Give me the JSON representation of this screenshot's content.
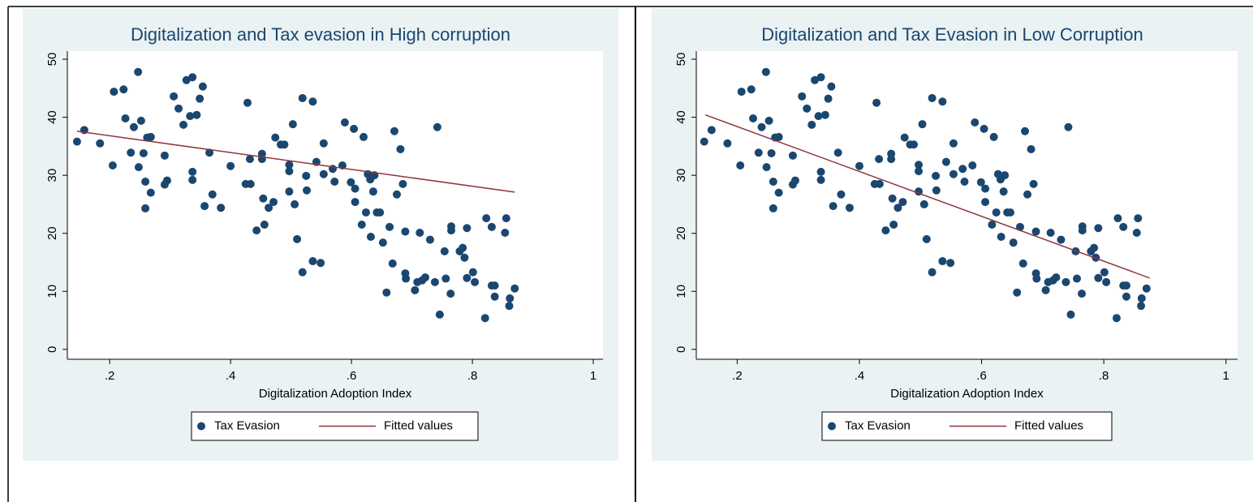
{
  "chart_data": [
    {
      "type": "scatter",
      "title": "Digitalization and Tax evasion in High corruption",
      "x_label": "Digitalization Adoption Index",
      "xlim": [
        0.13,
        1.016
      ],
      "xticks": [
        {
          "value": 0.2,
          "label": ".2"
        },
        {
          "value": 0.4,
          "label": ".4"
        },
        {
          "value": 0.6,
          "label": ".6"
        },
        {
          "value": 0.8,
          "label": ".8"
        },
        1
      ],
      "ylim": [
        -1.7,
        51.4
      ],
      "yticks": [
        0,
        10,
        20,
        30,
        40,
        50
      ],
      "grid": false,
      "series": [
        {
          "name": "Tax Evasion",
          "type": "scatter",
          "color": "#1a476f",
          "x": [
            0.146,
            0.158,
            0.184,
            0.207,
            0.223,
            0.205,
            0.226,
            0.235,
            0.24,
            0.247,
            0.248,
            0.252,
            0.256,
            0.259,
            0.259,
            0.262,
            0.268,
            0.268,
            0.291,
            0.291,
            0.295,
            0.306,
            0.314,
            0.322,
            0.327,
            0.333,
            0.337,
            0.337,
            0.337,
            0.344,
            0.349,
            0.354,
            0.357,
            0.365,
            0.37,
            0.384,
            0.4,
            0.428,
            0.425,
            0.432,
            0.433,
            0.443,
            0.452,
            0.452,
            0.454,
            0.456,
            0.463,
            0.471,
            0.474,
            0.483,
            0.489,
            0.497,
            0.497,
            0.497,
            0.503,
            0.506,
            0.51,
            0.519,
            0.519,
            0.525,
            0.526,
            0.536,
            0.536,
            0.542,
            0.549,
            0.554,
            0.554,
            0.569,
            0.572,
            0.585,
            0.589,
            0.599,
            0.604,
            0.606,
            0.606,
            0.617,
            0.62,
            0.624,
            0.627,
            0.631,
            0.632,
            0.636,
            0.638,
            0.642,
            0.647,
            0.652,
            0.658,
            0.663,
            0.668,
            0.671,
            0.675,
            0.681,
            0.685,
            0.689,
            0.689,
            0.69,
            0.705,
            0.709,
            0.713,
            0.717,
            0.722,
            0.73,
            0.738,
            0.742,
            0.746,
            0.754,
            0.756,
            0.764,
            0.765,
            0.765,
            0.779,
            0.784,
            0.787,
            0.791,
            0.791,
            0.801,
            0.804,
            0.821,
            0.823,
            0.832,
            0.832,
            0.837,
            0.837,
            0.856,
            0.854,
            0.862,
            0.861,
            0.87
          ],
          "values": [
            35.8,
            37.8,
            35.5,
            44.4,
            44.8,
            31.7,
            39.8,
            33.9,
            38.3,
            47.8,
            31.4,
            39.4,
            33.8,
            28.9,
            24.3,
            36.5,
            36.6,
            27,
            33.4,
            28.4,
            29.1,
            43.6,
            41.5,
            38.7,
            46.4,
            40.2,
            46.9,
            30.6,
            29.2,
            40.4,
            43.2,
            45.3,
            24.7,
            33.9,
            26.7,
            24.4,
            31.6,
            42.5,
            28.5,
            32.8,
            28.5,
            20.5,
            33.7,
            32.8,
            26,
            21.5,
            24.4,
            25.4,
            36.5,
            35.3,
            35.3,
            31.8,
            30.7,
            27.2,
            38.8,
            25,
            19,
            43.3,
            13.3,
            29.9,
            27.4,
            42.7,
            15.2,
            32.3,
            14.9,
            35.5,
            30.2,
            31.1,
            28.9,
            31.7,
            39.1,
            28.8,
            38,
            27.7,
            25.4,
            21.5,
            36.6,
            23.6,
            30.2,
            29.3,
            19.4,
            27.2,
            30,
            23.6,
            23.6,
            18.4,
            9.8,
            21.1,
            14.8,
            37.6,
            26.7,
            34.5,
            28.5,
            20.3,
            13.1,
            12.2,
            10.2,
            11.6,
            20.1,
            11.9,
            12.4,
            18.9,
            11.6,
            38.3,
            6,
            16.9,
            12.2,
            9.6,
            21.2,
            20.5,
            16.9,
            17.5,
            15.8,
            20.9,
            12.3,
            13.3,
            11.6,
            5.4,
            22.6,
            21.1,
            11,
            11,
            9.1,
            22.6,
            20.1,
            8.8,
            7.5,
            10.5
          ]
        },
        {
          "name": "Fitted values",
          "type": "line",
          "color": "#90353b",
          "x": [
            0.146,
            0.87
          ],
          "values": [
            37.6,
            27.1
          ]
        }
      ]
    },
    {
      "type": "scatter",
      "title": "Digitalization and Tax Evasion in Low Corruption",
      "x_label": "Digitalization Adoption Index",
      "xlim": [
        0.133,
        1.019
      ],
      "xticks": [
        {
          "value": 0.2,
          "label": ".2"
        },
        {
          "value": 0.4,
          "label": ".4"
        },
        {
          "value": 0.6,
          "label": ".6"
        },
        {
          "value": 0.8,
          "label": ".8"
        },
        1
      ],
      "ylim": [
        -1.7,
        51.4
      ],
      "yticks": [
        0,
        10,
        20,
        30,
        40,
        50
      ],
      "grid": false,
      "series": [
        {
          "name": "Tax Evasion",
          "type": "scatter",
          "color": "#1a476f",
          "x": [
            0.146,
            0.158,
            0.184,
            0.207,
            0.223,
            0.205,
            0.226,
            0.235,
            0.24,
            0.247,
            0.248,
            0.252,
            0.256,
            0.259,
            0.259,
            0.262,
            0.268,
            0.268,
            0.291,
            0.291,
            0.295,
            0.306,
            0.314,
            0.322,
            0.327,
            0.333,
            0.337,
            0.337,
            0.337,
            0.344,
            0.349,
            0.354,
            0.357,
            0.365,
            0.37,
            0.384,
            0.4,
            0.428,
            0.425,
            0.432,
            0.433,
            0.443,
            0.452,
            0.452,
            0.454,
            0.456,
            0.463,
            0.471,
            0.474,
            0.483,
            0.489,
            0.497,
            0.497,
            0.497,
            0.503,
            0.506,
            0.51,
            0.519,
            0.519,
            0.525,
            0.526,
            0.536,
            0.536,
            0.542,
            0.549,
            0.554,
            0.554,
            0.569,
            0.572,
            0.585,
            0.589,
            0.599,
            0.604,
            0.606,
            0.606,
            0.617,
            0.62,
            0.624,
            0.627,
            0.631,
            0.632,
            0.636,
            0.638,
            0.642,
            0.647,
            0.652,
            0.658,
            0.663,
            0.668,
            0.671,
            0.675,
            0.681,
            0.685,
            0.689,
            0.689,
            0.69,
            0.705,
            0.709,
            0.713,
            0.717,
            0.722,
            0.73,
            0.738,
            0.742,
            0.746,
            0.754,
            0.756,
            0.764,
            0.765,
            0.765,
            0.779,
            0.784,
            0.787,
            0.791,
            0.791,
            0.801,
            0.804,
            0.821,
            0.823,
            0.832,
            0.832,
            0.837,
            0.837,
            0.856,
            0.854,
            0.862,
            0.861,
            0.87
          ],
          "values": [
            35.8,
            37.8,
            35.5,
            44.4,
            44.8,
            31.7,
            39.8,
            33.9,
            38.3,
            47.8,
            31.4,
            39.4,
            33.8,
            28.9,
            24.3,
            36.5,
            36.6,
            27,
            33.4,
            28.4,
            29.1,
            43.6,
            41.5,
            38.7,
            46.4,
            40.2,
            46.9,
            30.6,
            29.2,
            40.4,
            43.2,
            45.3,
            24.7,
            33.9,
            26.7,
            24.4,
            31.6,
            42.5,
            28.5,
            32.8,
            28.5,
            20.5,
            33.7,
            32.8,
            26,
            21.5,
            24.4,
            25.4,
            36.5,
            35.3,
            35.3,
            31.8,
            30.7,
            27.2,
            38.8,
            25,
            19,
            43.3,
            13.3,
            29.9,
            27.4,
            42.7,
            15.2,
            32.3,
            14.9,
            35.5,
            30.2,
            31.1,
            28.9,
            31.7,
            39.1,
            28.8,
            38,
            27.7,
            25.4,
            21.5,
            36.6,
            23.6,
            30.2,
            29.3,
            19.4,
            27.2,
            30,
            23.6,
            23.6,
            18.4,
            9.8,
            21.1,
            14.8,
            37.6,
            26.7,
            34.5,
            28.5,
            20.3,
            13.1,
            12.2,
            10.2,
            11.6,
            20.1,
            11.9,
            12.4,
            18.9,
            11.6,
            38.3,
            6,
            16.9,
            12.2,
            9.6,
            21.2,
            20.5,
            16.9,
            17.5,
            15.8,
            20.9,
            12.3,
            13.3,
            11.6,
            5.4,
            22.6,
            21.1,
            11,
            11,
            9.1,
            22.6,
            20.1,
            8.8,
            7.5,
            10.5
          ]
        },
        {
          "name": "Fitted values",
          "type": "line",
          "color": "#90353b",
          "x": [
            0.148,
            0.875
          ],
          "values": [
            40.4,
            12.3
          ]
        }
      ]
    }
  ]
}
